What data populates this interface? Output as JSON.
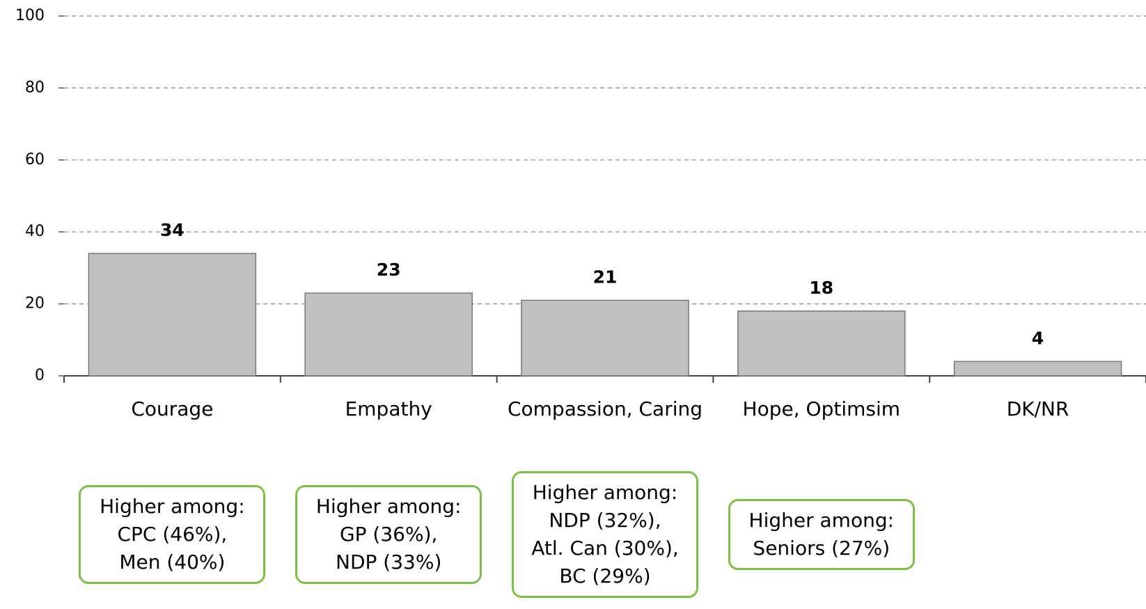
{
  "chart_data": {
    "type": "bar",
    "categories": [
      "Courage",
      "Empathy",
      "Compassion, Caring",
      "Hope, Optimsim",
      "DK/NR"
    ],
    "values": [
      34,
      23,
      21,
      18,
      4
    ],
    "color": "#c0c0c0",
    "ylim": [
      0,
      100
    ],
    "yticks": [
      0,
      20,
      40,
      60,
      80,
      100
    ],
    "grid": true,
    "annotations": [
      [
        "Higher among:",
        "CPC (46%),",
        "Men (40%)"
      ],
      [
        "Higher among:",
        "GP (36%),",
        "NDP (33%)"
      ],
      [
        "Higher among:",
        "NDP (32%),",
        "Atl. Can (30%),",
        "BC (29%)"
      ],
      [
        "Higher among:",
        "Seniors (27%)"
      ]
    ]
  }
}
